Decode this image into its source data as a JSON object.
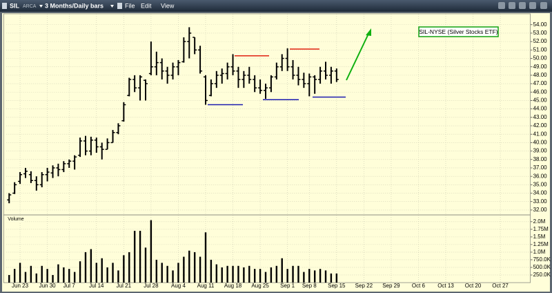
{
  "toolbar": {
    "symbol": "SIL",
    "exchange": "ARCA",
    "period": "3 Months/Daily bars",
    "menu": [
      "File",
      "Edit",
      "View"
    ]
  },
  "chart_data": {
    "type": "ohlc",
    "annotation": "SIL-NYSE (Silver Stocks ETF)",
    "volume_label": "Volume",
    "categories": [
      null,
      null,
      "Jun 23",
      null,
      null,
      null,
      null,
      "Jun 30",
      null,
      null,
      null,
      "Jul 7",
      null,
      null,
      null,
      null,
      "Jul 14",
      null,
      null,
      null,
      null,
      "Jul 21",
      null,
      null,
      null,
      null,
      "Jul 28",
      null,
      null,
      null,
      null,
      "Aug 4",
      null,
      null,
      null,
      null,
      "Aug 11",
      null,
      null,
      null,
      null,
      "Aug 18",
      null,
      null,
      null,
      null,
      "Aug 25",
      null,
      null,
      null,
      null,
      "Sep 1",
      null,
      null,
      null,
      "Sep 8",
      null,
      null,
      null,
      null,
      "Sep 15",
      null,
      null,
      null,
      null,
      "Sep 22",
      null,
      null,
      null,
      null,
      "Sep 29",
      null,
      null,
      null,
      null,
      "Oct 6",
      null,
      null,
      null,
      null,
      "Oct 13",
      null,
      null,
      null,
      null,
      "Oct 20",
      null,
      null,
      null,
      null,
      "Oct 27",
      null,
      null,
      null,
      null,
      null
    ],
    "open": [
      33.2,
      34.0,
      35.4,
      36.3,
      36.2,
      35.5,
      35.0,
      36.2,
      36.4,
      37.0,
      36.8,
      37.5,
      37.8,
      38.5,
      40.2,
      39.0,
      40.3,
      39.5,
      39.2,
      40.0,
      41.2,
      42.6,
      45.6,
      47.5,
      46.5,
      47.4,
      48.2,
      49.0,
      49.5,
      48.5,
      48.0,
      49.0,
      49.6,
      52.0,
      52.5,
      51.0,
      47.8,
      45.6,
      47.0,
      48.0,
      48.2,
      49.0,
      48.5,
      47.5,
      48.0,
      47.5,
      46.5,
      46.2,
      46.5,
      47.8,
      49.0,
      50.0,
      49.0,
      48.0,
      47.5,
      47.0,
      47.8,
      47.5,
      48.5,
      48.0,
      48.5,
      null,
      null,
      null,
      null,
      null,
      null,
      null,
      null,
      null,
      null,
      null,
      null,
      null,
      null,
      null,
      null,
      null,
      null,
      null,
      null,
      null,
      null,
      null,
      null,
      null,
      null,
      null,
      null,
      null,
      null,
      null,
      null,
      null,
      null,
      null
    ],
    "high": [
      34.0,
      35.3,
      36.5,
      37.0,
      36.6,
      36.0,
      36.5,
      37.0,
      37.3,
      37.5,
      37.8,
      38.0,
      38.5,
      40.6,
      40.8,
      40.7,
      40.6,
      40.0,
      40.5,
      41.5,
      42.3,
      44.8,
      47.7,
      48.0,
      48.0,
      47.5,
      52.0,
      50.8,
      50.0,
      49.0,
      49.5,
      49.8,
      52.5,
      53.7,
      52.5,
      51.5,
      48.0,
      47.5,
      48.5,
      48.8,
      49.5,
      50.5,
      49.0,
      48.5,
      49.0,
      48.0,
      47.5,
      47.0,
      48.0,
      49.5,
      50.5,
      51.2,
      49.8,
      49.0,
      48.3,
      48.2,
      48.0,
      49.0,
      49.6,
      49.0,
      48.8,
      null,
      null,
      null,
      null,
      null,
      null,
      null,
      null,
      null,
      null,
      null,
      null,
      null,
      null,
      null,
      null,
      null,
      null,
      null,
      null,
      null,
      null,
      null,
      null,
      null,
      null,
      null,
      null,
      null,
      null,
      null,
      null,
      null,
      null,
      null
    ],
    "low": [
      32.8,
      33.9,
      35.1,
      35.8,
      35.2,
      34.3,
      34.7,
      35.4,
      35.8,
      36.0,
      36.5,
      37.0,
      36.8,
      38.3,
      38.5,
      38.5,
      38.8,
      38.0,
      39.2,
      40.0,
      41.0,
      42.5,
      45.5,
      46.0,
      45.0,
      45.0,
      48.0,
      48.0,
      47.5,
      47.0,
      47.5,
      48.0,
      49.5,
      50.0,
      50.5,
      48.2,
      44.5,
      45.5,
      46.5,
      47.0,
      47.5,
      48.0,
      46.5,
      46.5,
      47.0,
      46.0,
      45.8,
      45.2,
      46.0,
      47.5,
      48.5,
      48.5,
      47.5,
      46.8,
      46.5,
      45.5,
      45.8,
      47.0,
      47.5,
      47.0,
      47.2,
      null,
      null,
      null,
      null,
      null,
      null,
      null,
      null,
      null,
      null,
      null,
      null,
      null,
      null,
      null,
      null,
      null,
      null,
      null,
      null,
      null,
      null,
      null,
      null,
      null,
      null,
      null,
      null,
      null,
      null,
      null,
      null,
      null,
      null,
      null
    ],
    "close": [
      33.8,
      35.0,
      36.2,
      36.6,
      35.5,
      35.0,
      36.2,
      36.5,
      37.0,
      36.8,
      37.5,
      37.8,
      38.3,
      40.2,
      39.0,
      40.3,
      39.5,
      39.2,
      40.0,
      41.2,
      42.0,
      44.5,
      47.5,
      46.5,
      47.8,
      47.0,
      49.0,
      49.5,
      48.5,
      48.0,
      49.0,
      49.5,
      52.0,
      53.0,
      51.0,
      48.5,
      45.0,
      47.0,
      48.0,
      48.2,
      49.0,
      48.5,
      47.5,
      48.0,
      47.5,
      46.5,
      46.2,
      46.5,
      47.8,
      49.0,
      50.0,
      49.0,
      48.0,
      47.5,
      47.0,
      47.8,
      47.5,
      48.5,
      48.0,
      48.5,
      47.5,
      null,
      null,
      null,
      null,
      null,
      null,
      null,
      null,
      null,
      null,
      null,
      null,
      null,
      null,
      null,
      null,
      null,
      null,
      null,
      null,
      null,
      null,
      null,
      null,
      null,
      null,
      null,
      null,
      null,
      null,
      null,
      null,
      null,
      null,
      null
    ],
    "volume": [
      250000,
      450000,
      650000,
      350000,
      550000,
      300000,
      550000,
      450000,
      250000,
      600000,
      500000,
      450000,
      350000,
      700000,
      1000000,
      1100000,
      650000,
      800000,
      500000,
      650000,
      400000,
      900000,
      1000000,
      1700000,
      1700000,
      1150000,
      2050000,
      750000,
      650000,
      550000,
      400000,
      650000,
      850000,
      1050000,
      1000000,
      850000,
      1650000,
      750000,
      600000,
      500000,
      550000,
      550000,
      550000,
      500000,
      550000,
      450000,
      450000,
      350000,
      500000,
      550000,
      800000,
      450000,
      550000,
      550000,
      350000,
      450000,
      400000,
      450000,
      400000,
      300000,
      300000,
      null,
      null,
      null,
      null,
      null,
      null,
      null,
      null,
      null,
      null,
      null,
      null,
      null,
      null,
      null,
      null,
      null,
      null,
      null,
      null,
      null,
      null,
      null,
      null,
      null,
      null,
      null,
      null,
      null,
      null,
      null,
      null,
      null,
      null,
      null
    ],
    "color": "#000000",
    "ylim": [
      31.5,
      54.8
    ],
    "yticks": [
      {
        "value": 32,
        "label": "32.00"
      },
      {
        "value": 33,
        "label": "33.00"
      },
      {
        "value": 34,
        "label": "34.00"
      },
      {
        "value": 35,
        "label": "35.00"
      },
      {
        "value": 36,
        "label": "36.00"
      },
      {
        "value": 37,
        "label": "37.00"
      },
      {
        "value": 38,
        "label": "38.00"
      },
      {
        "value": 39,
        "label": "39.00"
      },
      {
        "value": 40,
        "label": "40.00"
      },
      {
        "value": 41,
        "label": "41.00"
      },
      {
        "value": 42,
        "label": "42.00"
      },
      {
        "value": 43,
        "label": "43.00"
      },
      {
        "value": 44,
        "label": "44.00"
      },
      {
        "value": 45,
        "label": "45.00"
      },
      {
        "value": 46,
        "label": "46.00"
      },
      {
        "value": 47,
        "label": "47.00"
      },
      {
        "value": 48,
        "label": "48.00"
      },
      {
        "value": 49,
        "label": "49.00"
      },
      {
        "value": 50,
        "label": "50.00"
      },
      {
        "value": 51,
        "label": "51.00"
      },
      {
        "value": 52,
        "label": "52.00"
      },
      {
        "value": 53,
        "label": "53.00"
      },
      {
        "value": 54,
        "label": "54.00"
      }
    ],
    "volume_ylim": [
      0,
      2200000
    ],
    "volume_yticks": [
      {
        "value": 250000,
        "label": "250.0K"
      },
      {
        "value": 500000,
        "label": "500.0K"
      },
      {
        "value": 750000,
        "label": "750.0K"
      },
      {
        "value": 1000000,
        "label": "1.0M"
      },
      {
        "value": 1250000,
        "label": "1.25M"
      },
      {
        "value": 1500000,
        "label": "1.5M"
      },
      {
        "value": 1750000,
        "label": "1.75M"
      },
      {
        "value": 2000000,
        "label": "2.0M"
      }
    ],
    "grid": true
  }
}
